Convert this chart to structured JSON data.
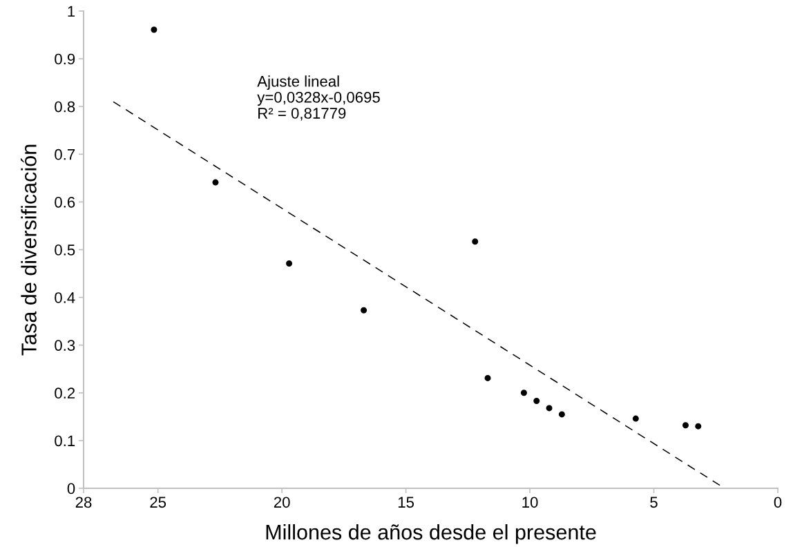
{
  "chart_data": {
    "type": "scatter",
    "xlabel": "Millones de años desde el presente",
    "ylabel": "Tasa de diversificación",
    "xlim": [
      28,
      0
    ],
    "xticks": [
      28,
      25,
      20,
      15,
      10,
      5,
      0
    ],
    "ylim": [
      0,
      1
    ],
    "yticks": [
      0,
      0.1,
      0.2,
      0.3,
      0.4,
      0.5,
      0.6,
      0.7,
      0.8,
      0.9,
      1
    ],
    "grid": false,
    "series": [
      {
        "color": "#000000",
        "marker": "circle",
        "x": [
          25.16,
          22.68,
          19.71,
          16.7,
          12.21,
          11.7,
          10.24,
          9.73,
          9.22,
          8.71,
          5.73,
          3.72,
          3.21
        ],
        "values": [
          0.961,
          0.641,
          0.471,
          0.373,
          0.517,
          0.231,
          0.2,
          0.183,
          0.168,
          0.155,
          0.146,
          0.132,
          0.13
        ]
      },
      {
        "type": "line",
        "color": "#000000",
        "line_style": "dashed",
        "x": [
          26.8,
          2.3
        ],
        "values": [
          0.81,
          0.005
        ]
      }
    ],
    "annotations": [
      "Ajuste lineal\ny=0,0328x-0,0695\nR² = 0,81779"
    ]
  }
}
